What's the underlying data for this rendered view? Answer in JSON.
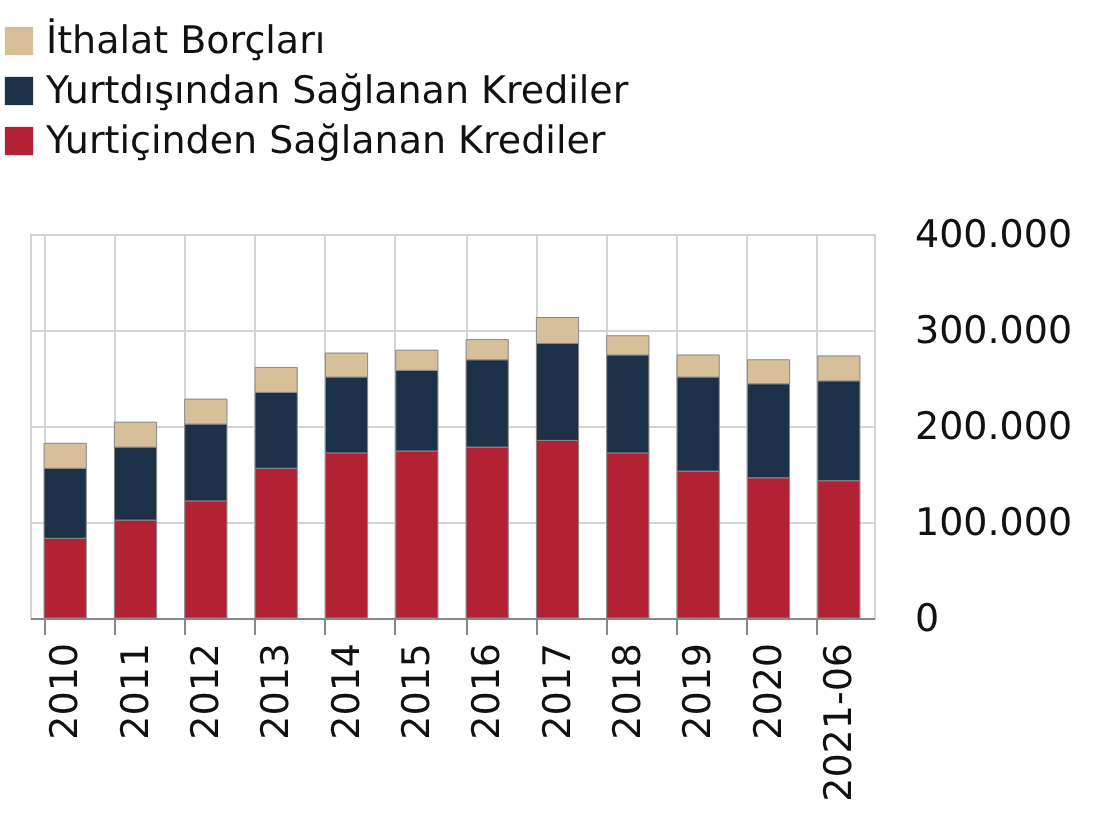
{
  "chart_data": {
    "type": "bar",
    "stacked": true,
    "categories": [
      "2010",
      "2011",
      "2012",
      "2013",
      "2014",
      "2015",
      "2016",
      "2017",
      "2018",
      "2019",
      "2020",
      "2021-06"
    ],
    "series": [
      {
        "name": "Yurtiçinden Sağlanan Krediler",
        "color": "#b22234",
        "values": [
          83000,
          102000,
          122000,
          156000,
          172000,
          174000,
          178000,
          185000,
          172000,
          153000,
          146000,
          143000
        ]
      },
      {
        "name": "Yurtdışından Sağlanan Krediler",
        "color": "#1c3148",
        "values": [
          73000,
          76000,
          80000,
          79000,
          79000,
          84000,
          91000,
          101000,
          102000,
          98000,
          98000,
          104000
        ]
      },
      {
        "name": "İthalat Borçları",
        "color": "#d6bf99",
        "values": [
          26000,
          26000,
          26000,
          26000,
          25000,
          21000,
          21000,
          27000,
          20000,
          23000,
          25000,
          26000
        ]
      }
    ],
    "ylim": [
      0,
      400000
    ],
    "yticks": [
      0,
      {
        "value": 100000,
        "label": "100.000"
      },
      {
        "value": 200000,
        "label": "200.000"
      },
      {
        "value": 300000,
        "label": "300.000"
      },
      {
        "value": 400000,
        "label": "400.000"
      }
    ],
    "grid": true,
    "legend": "top left"
  }
}
